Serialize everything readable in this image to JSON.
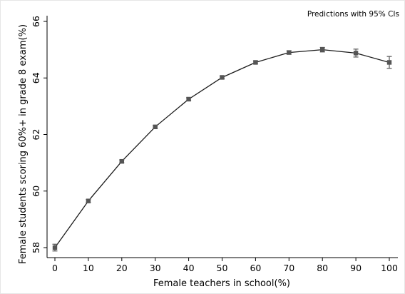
{
  "chart_data": {
    "type": "line",
    "title": "",
    "note": "Predictions with 95% CIs",
    "xlabel": "Female teachers in school(%)",
    "ylabel": "Female students scoring 60%+ in grade 8 exam(%)",
    "xlim": [
      0,
      100
    ],
    "ylim": [
      58,
      66
    ],
    "x_ticks": [
      0,
      10,
      20,
      30,
      40,
      50,
      60,
      70,
      80,
      90,
      100
    ],
    "y_ticks": [
      58,
      60,
      62,
      64,
      66
    ],
    "grid": false,
    "series": [
      {
        "x": [
          0,
          10,
          20,
          30,
          40,
          50,
          60,
          70,
          80,
          90,
          100
        ],
        "y": [
          58.0,
          59.65,
          61.05,
          62.27,
          63.25,
          64.02,
          64.55,
          64.9,
          65.0,
          64.88,
          64.55
        ],
        "ci_low": [
          57.88,
          59.6,
          61.0,
          62.22,
          63.2,
          63.97,
          64.5,
          64.84,
          64.92,
          64.74,
          64.34
        ],
        "ci_high": [
          58.12,
          59.7,
          61.1,
          62.32,
          63.3,
          64.07,
          64.6,
          64.96,
          65.08,
          65.02,
          64.76
        ]
      }
    ],
    "colors": {
      "line": "#1a1a1a",
      "marker": "#555555",
      "axis": "#000000"
    }
  }
}
